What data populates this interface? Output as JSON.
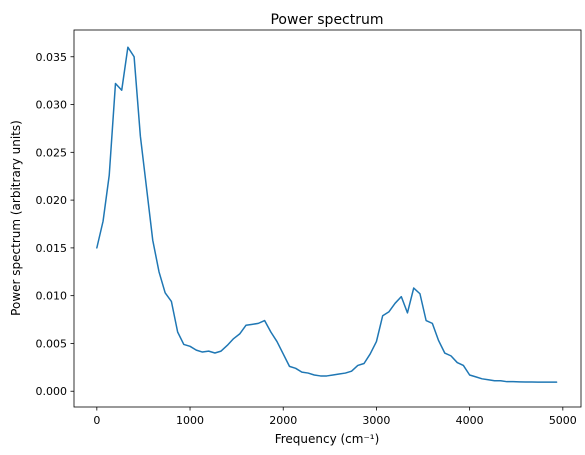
{
  "chart_data": {
    "type": "line",
    "title": "Power spectrum",
    "xlabel": "Frequency (cm⁻¹)",
    "ylabel": "Power spectrum (arbitrary units)",
    "xlim": [
      -245,
      5195
    ],
    "ylim": [
      -0.00165,
      0.0378
    ],
    "x_ticks": [
      0,
      1000,
      2000,
      3000,
      4000,
      5000
    ],
    "x_tick_labels": [
      "0",
      "1000",
      "2000",
      "3000",
      "4000",
      "5000"
    ],
    "y_ticks": [
      0.0,
      0.005,
      0.01,
      0.015,
      0.02,
      0.025,
      0.03,
      0.035
    ],
    "y_tick_labels": [
      "0.000",
      "0.005",
      "0.010",
      "0.015",
      "0.020",
      "0.025",
      "0.030",
      "0.035"
    ],
    "grid": false,
    "series": [
      {
        "color": "#1f77b4",
        "x": [
          0,
          67,
          133,
          200,
          267,
          333,
          400,
          467,
          533,
          600,
          667,
          733,
          800,
          867,
          933,
          1000,
          1067,
          1133,
          1200,
          1267,
          1333,
          1400,
          1467,
          1533,
          1600,
          1667,
          1733,
          1800,
          1867,
          1933,
          2000,
          2067,
          2133,
          2200,
          2267,
          2333,
          2400,
          2467,
          2533,
          2600,
          2667,
          2733,
          2800,
          2867,
          2933,
          3000,
          3067,
          3133,
          3200,
          3267,
          3333,
          3400,
          3467,
          3533,
          3600,
          3667,
          3733,
          3800,
          3867,
          3933,
          4000,
          4067,
          4133,
          4200,
          4267,
          4333,
          4400,
          4467,
          4533,
          4600,
          4667,
          4733,
          4800,
          4867,
          4933
        ],
        "y": [
          0.015,
          0.0178,
          0.0226,
          0.0322,
          0.0315,
          0.036,
          0.035,
          0.0267,
          0.0213,
          0.0158,
          0.0125,
          0.0103,
          0.0094,
          0.0062,
          0.0049,
          0.0047,
          0.0043,
          0.0041,
          0.0042,
          0.004,
          0.0042,
          0.0048,
          0.0055,
          0.006,
          0.0069,
          0.007,
          0.0071,
          0.0074,
          0.0062,
          0.0052,
          0.0039,
          0.0026,
          0.0024,
          0.002,
          0.0019,
          0.0017,
          0.0016,
          0.0016,
          0.0017,
          0.0018,
          0.0019,
          0.0021,
          0.0027,
          0.0029,
          0.0039,
          0.0052,
          0.0079,
          0.0083,
          0.0092,
          0.0099,
          0.0082,
          0.0108,
          0.0102,
          0.0074,
          0.0071,
          0.0053,
          0.004,
          0.0037,
          0.003,
          0.0027,
          0.0017,
          0.0015,
          0.0013,
          0.0012,
          0.0011,
          0.0011,
          0.001,
          0.001,
          0.00098,
          0.00097,
          0.00096,
          0.00095,
          0.00095,
          0.00095,
          0.00095
        ]
      }
    ]
  }
}
